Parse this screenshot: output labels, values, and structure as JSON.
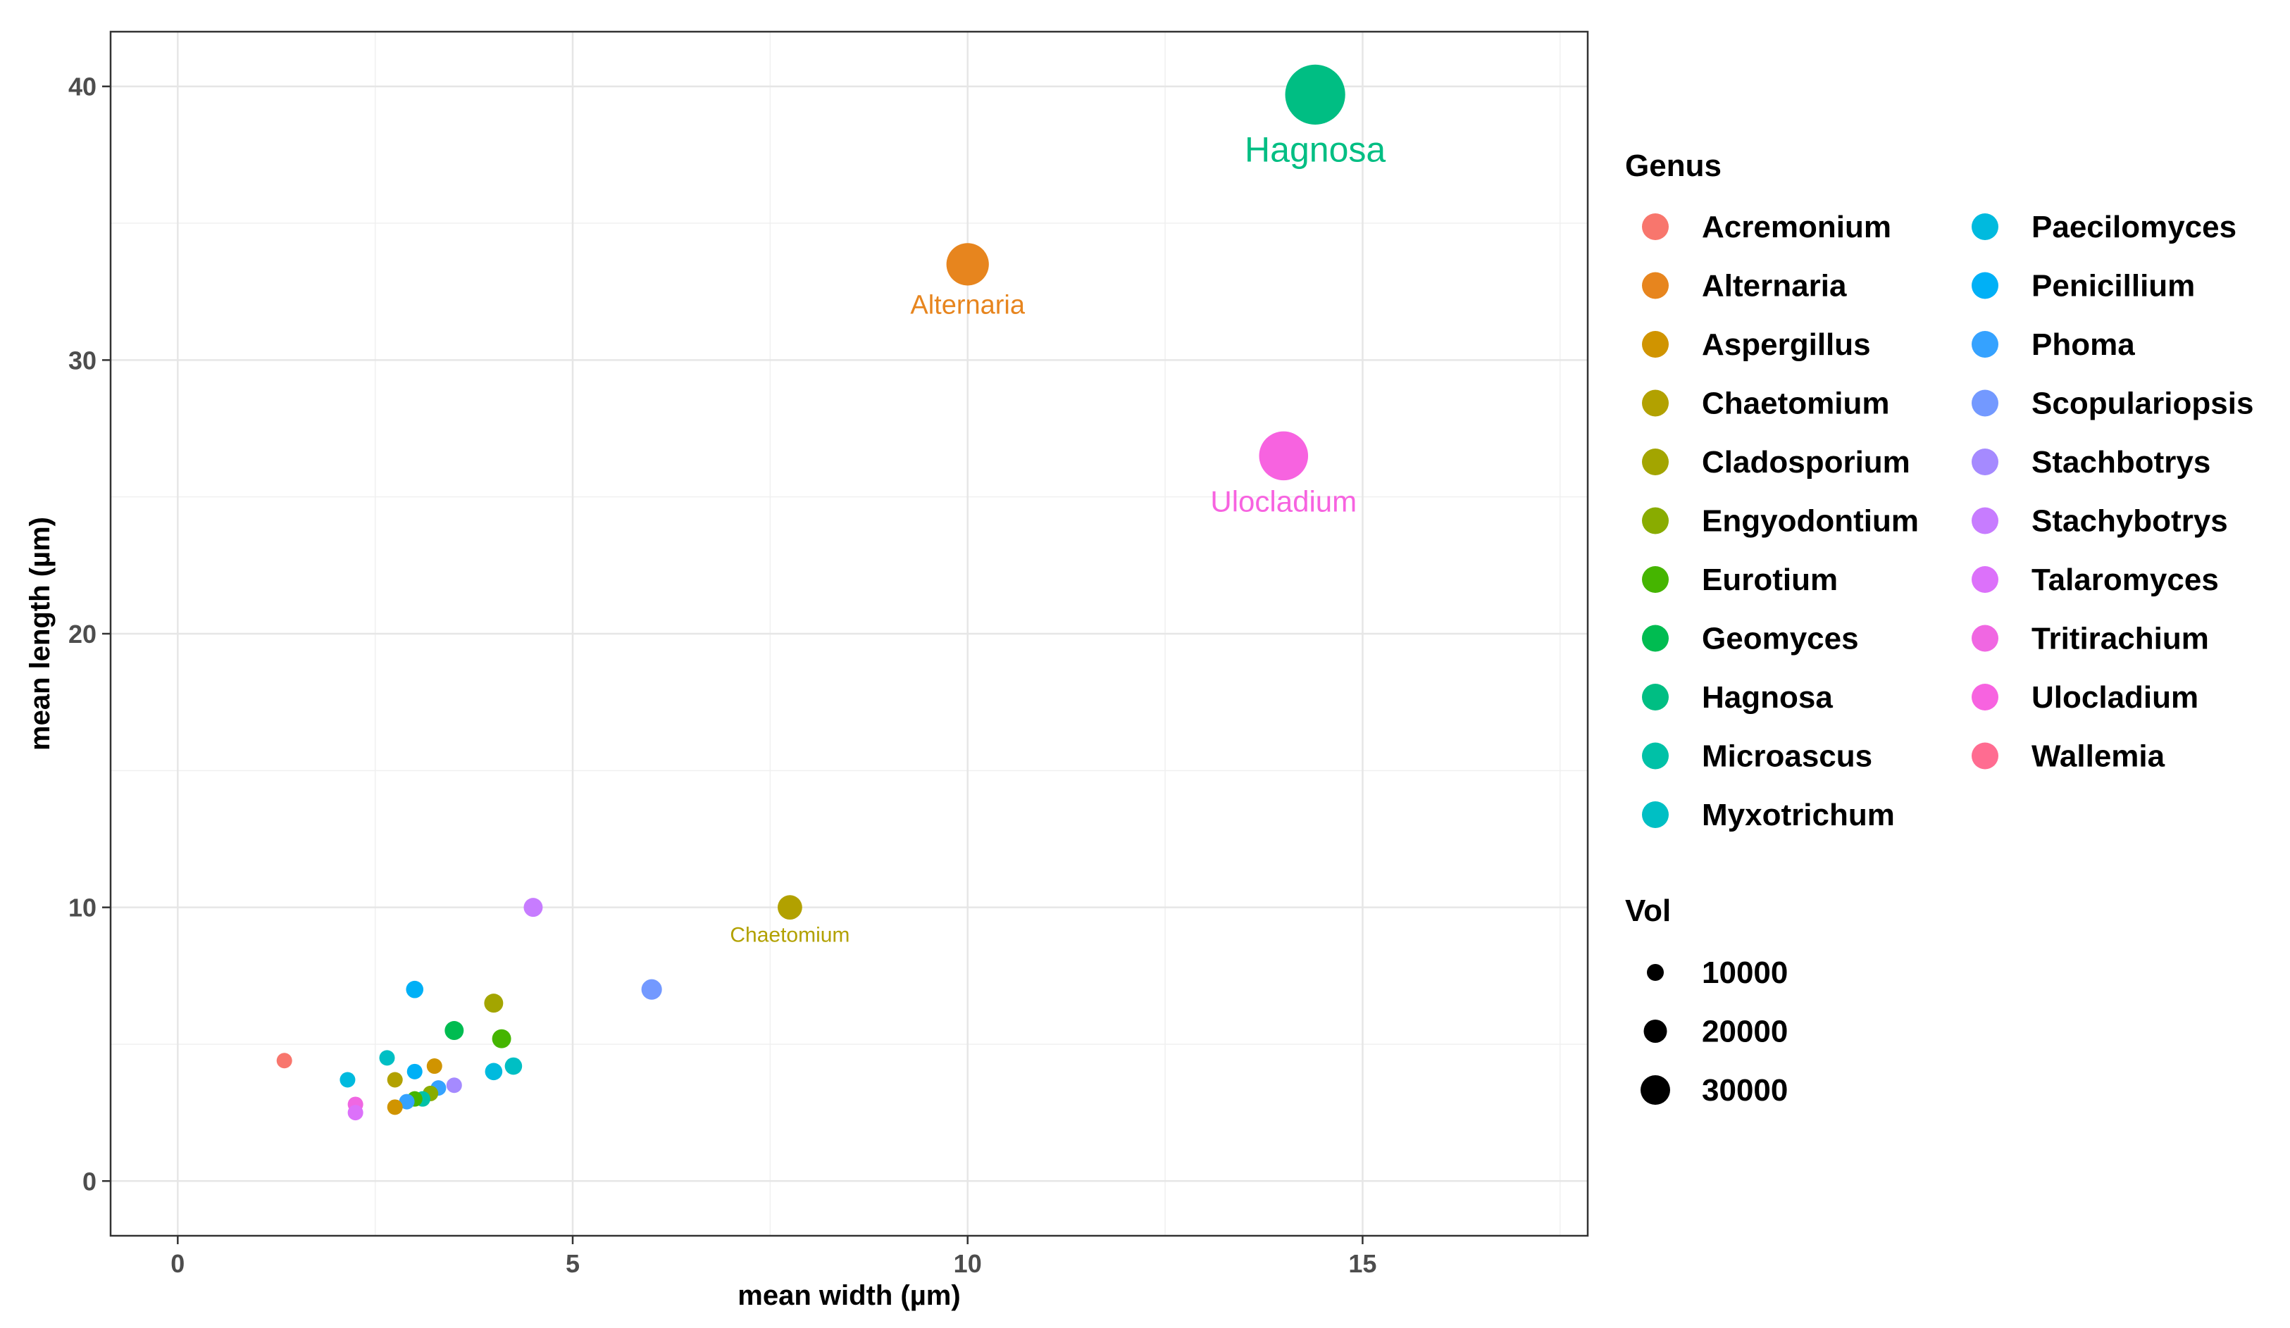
{
  "chart_data": {
    "type": "scatter",
    "xlabel": "mean width (µm)",
    "ylabel": "mean length (µm)",
    "xlim": [
      -0.85,
      17.85
    ],
    "ylim": [
      -2,
      42
    ],
    "x_ticks": [
      0,
      5,
      10,
      15
    ],
    "y_ticks": [
      0,
      10,
      20,
      30,
      40
    ],
    "x_tick_labels": [
      "0",
      "5",
      "10",
      "15"
    ],
    "y_tick_labels": [
      "0",
      "10",
      "20",
      "30",
      "40"
    ],
    "grid": true,
    "legend_position": "right",
    "legend_color_title": "Genus",
    "legend_size_title": "Vol",
    "genera": [
      {
        "name": "Acremonium",
        "color": "#F8766D"
      },
      {
        "name": "Alternaria",
        "color": "#E7851E"
      },
      {
        "name": "Aspergillus",
        "color": "#D09400"
      },
      {
        "name": "Chaetomium",
        "color": "#B2A100"
      },
      {
        "name": "Cladosporium",
        "color": "#A3A500"
      },
      {
        "name": "Engyodontium",
        "color": "#89AC00"
      },
      {
        "name": "Eurotium",
        "color": "#45B500"
      },
      {
        "name": "Geomyces",
        "color": "#00BC51"
      },
      {
        "name": "Hagnosa",
        "color": "#00BE83"
      },
      {
        "name": "Microascus",
        "color": "#00C1A7"
      },
      {
        "name": "Myxotrichum",
        "color": "#00BFC4"
      },
      {
        "name": "Paecilomyces",
        "color": "#00BADE"
      },
      {
        "name": "Penicillium",
        "color": "#00B0F6"
      },
      {
        "name": "Phoma",
        "color": "#35A2FF"
      },
      {
        "name": "Scopulariopsis",
        "color": "#7399FF"
      },
      {
        "name": "Stachbotrys",
        "color": "#A58AFF"
      },
      {
        "name": "Stachybotrys",
        "color": "#C77CFF"
      },
      {
        "name": "Talaromyces",
        "color": "#DC71FA"
      },
      {
        "name": "Tritirachium",
        "color": "#F067E2"
      },
      {
        "name": "Ulocladium",
        "color": "#F763E0"
      },
      {
        "name": "Wallemia",
        "color": "#FF6C91"
      }
    ],
    "size_legend": [
      {
        "label": "10000",
        "vol": 10000
      },
      {
        "label": "20000",
        "vol": 20000
      },
      {
        "label": "30000",
        "vol": 30000
      }
    ],
    "points": [
      {
        "x": 14.4,
        "y": 39.7,
        "vol": 30000,
        "genus": "Hagnosa",
        "color": "#00BE83",
        "label": "Hagnosa"
      },
      {
        "x": 10.0,
        "y": 33.5,
        "vol": 15000,
        "genus": "Alternaria",
        "color": "#E7851E",
        "label": "Alternaria"
      },
      {
        "x": 14.0,
        "y": 26.5,
        "vol": 20000,
        "genus": "Ulocladium",
        "color": "#F763E0",
        "label": "Ulocladium"
      },
      {
        "x": 7.75,
        "y": 10.0,
        "vol": 5000,
        "genus": "Chaetomium",
        "color": "#B2A100",
        "label": "Chaetomium"
      },
      {
        "x": 4.5,
        "y": 10.0,
        "vol": 3000,
        "genus": "Stachybotrys",
        "color": "#C77CFF",
        "label": ""
      },
      {
        "x": 6.0,
        "y": 7.0,
        "vol": 3500,
        "genus": "Scopulariopsis",
        "color": "#7399FF",
        "label": ""
      },
      {
        "x": 3.0,
        "y": 7.0,
        "vol": 2500,
        "genus": "Penicillium",
        "color": "#00B0F6",
        "label": ""
      },
      {
        "x": 4.0,
        "y": 6.5,
        "vol": 3000,
        "genus": "Cladosporium",
        "color": "#A3A500",
        "label": ""
      },
      {
        "x": 3.5,
        "y": 5.5,
        "vol": 3000,
        "genus": "Geomyces",
        "color": "#00BC51",
        "label": ""
      },
      {
        "x": 4.1,
        "y": 5.2,
        "vol": 3000,
        "genus": "Eurotium",
        "color": "#45B500",
        "label": ""
      },
      {
        "x": 1.35,
        "y": 4.4,
        "vol": 2000,
        "genus": "Acremonium",
        "color": "#F8766D",
        "label": ""
      },
      {
        "x": 2.65,
        "y": 4.5,
        "vol": 2000,
        "genus": "Myxotrichum",
        "color": "#00BFC4",
        "label": ""
      },
      {
        "x": 4.25,
        "y": 4.2,
        "vol": 2500,
        "genus": "Myxotrichum",
        "color": "#00BFC4",
        "label": ""
      },
      {
        "x": 4.0,
        "y": 4.0,
        "vol": 2500,
        "genus": "Paecilomyces",
        "color": "#00BADE",
        "label": ""
      },
      {
        "x": 3.25,
        "y": 4.2,
        "vol": 2000,
        "genus": "Aspergillus",
        "color": "#D09400",
        "label": ""
      },
      {
        "x": 2.15,
        "y": 3.7,
        "vol": 2000,
        "genus": "Paecilomyces",
        "color": "#00BADE",
        "label": ""
      },
      {
        "x": 3.0,
        "y": 4.0,
        "vol": 2000,
        "genus": "Penicillium",
        "color": "#00B0F6",
        "label": ""
      },
      {
        "x": 2.75,
        "y": 3.7,
        "vol": 2000,
        "genus": "Chaetomium",
        "color": "#B2A100",
        "label": ""
      },
      {
        "x": 3.5,
        "y": 3.5,
        "vol": 2000,
        "genus": "Stachbotrys",
        "color": "#A58AFF",
        "label": ""
      },
      {
        "x": 3.3,
        "y": 3.4,
        "vol": 2000,
        "genus": "Phoma",
        "color": "#35A2FF",
        "label": ""
      },
      {
        "x": 3.2,
        "y": 3.2,
        "vol": 2000,
        "genus": "Engyodontium",
        "color": "#89AC00",
        "label": ""
      },
      {
        "x": 3.1,
        "y": 3.0,
        "vol": 2000,
        "genus": "Microascus",
        "color": "#00C1A7",
        "label": ""
      },
      {
        "x": 3.0,
        "y": 3.0,
        "vol": 2000,
        "genus": "Eurotium",
        "color": "#45B500",
        "label": ""
      },
      {
        "x": 2.9,
        "y": 2.9,
        "vol": 2000,
        "genus": "Phoma",
        "color": "#35A2FF",
        "label": ""
      },
      {
        "x": 2.25,
        "y": 2.8,
        "vol": 2000,
        "genus": "Tritirachium",
        "color": "#F067E2",
        "label": ""
      },
      {
        "x": 2.75,
        "y": 2.7,
        "vol": 2000,
        "genus": "Aspergillus",
        "color": "#D09400",
        "label": ""
      },
      {
        "x": 2.25,
        "y": 2.5,
        "vol": 2000,
        "genus": "Talaromyces",
        "color": "#DC71FA",
        "label": ""
      }
    ]
  }
}
